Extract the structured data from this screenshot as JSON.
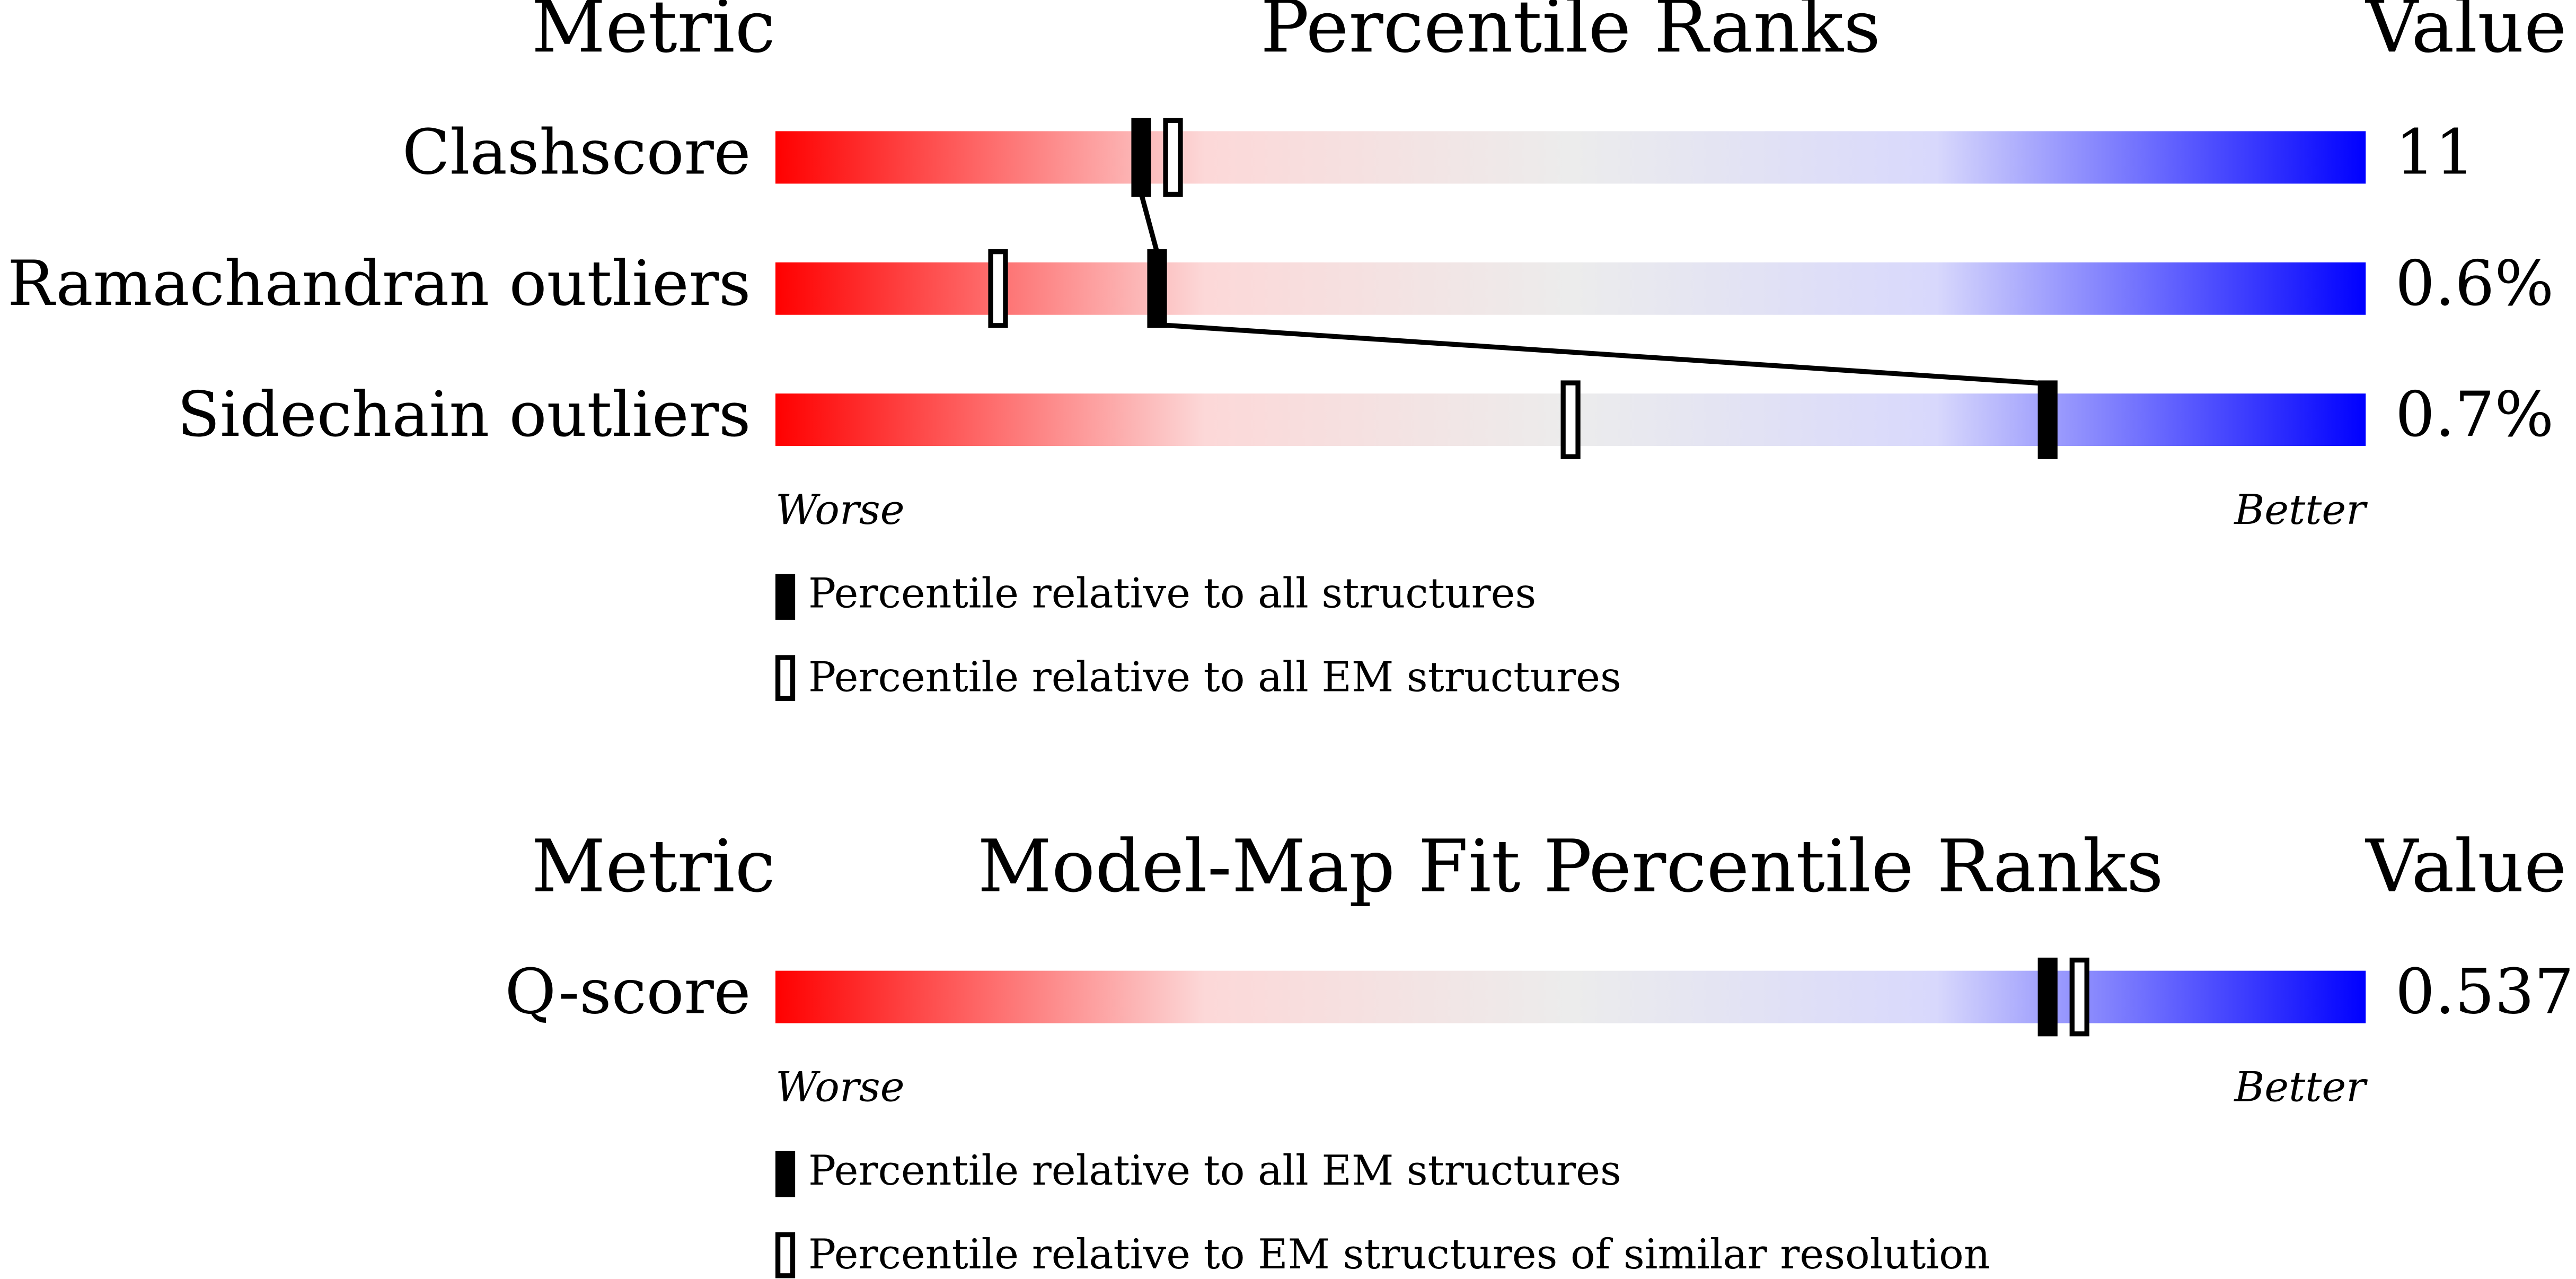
{
  "chart_data": [
    {
      "type": "percentile",
      "metric_header": "Metric",
      "title": "Percentile Ranks",
      "value_header": "Value",
      "categories": [
        "Clashscore",
        "Ramachandran outliers",
        "Sidechain outliers"
      ],
      "metric_values": [
        "11",
        "0.6%",
        "0.7%"
      ],
      "series": [
        {
          "name": "Percentile relative to all structures",
          "style": "filled",
          "color": "#000000",
          "values": [
            23,
            24,
            80
          ]
        },
        {
          "name": "Percentile relative to all EM structures",
          "style": "open",
          "color": "#000000",
          "values": [
            25,
            14,
            50
          ]
        }
      ],
      "connector": true,
      "xlim": [
        0,
        100
      ],
      "worse_label": "Worse",
      "better_label": "Better"
    },
    {
      "type": "percentile",
      "metric_header": "Metric",
      "title": "Model-Map Fit Percentile Ranks",
      "value_header": "Value",
      "categories": [
        "Q-score"
      ],
      "metric_values": [
        "0.537"
      ],
      "series": [
        {
          "name": "Percentile relative to all EM structures",
          "style": "filled",
          "color": "#000000",
          "values": [
            80
          ]
        },
        {
          "name": "Percentile relative to EM structures of similar resolution",
          "style": "open",
          "color": "#000000",
          "values": [
            82
          ]
        }
      ],
      "connector": false,
      "xlim": [
        0,
        100
      ],
      "worse_label": "Worse",
      "better_label": "Better"
    }
  ]
}
